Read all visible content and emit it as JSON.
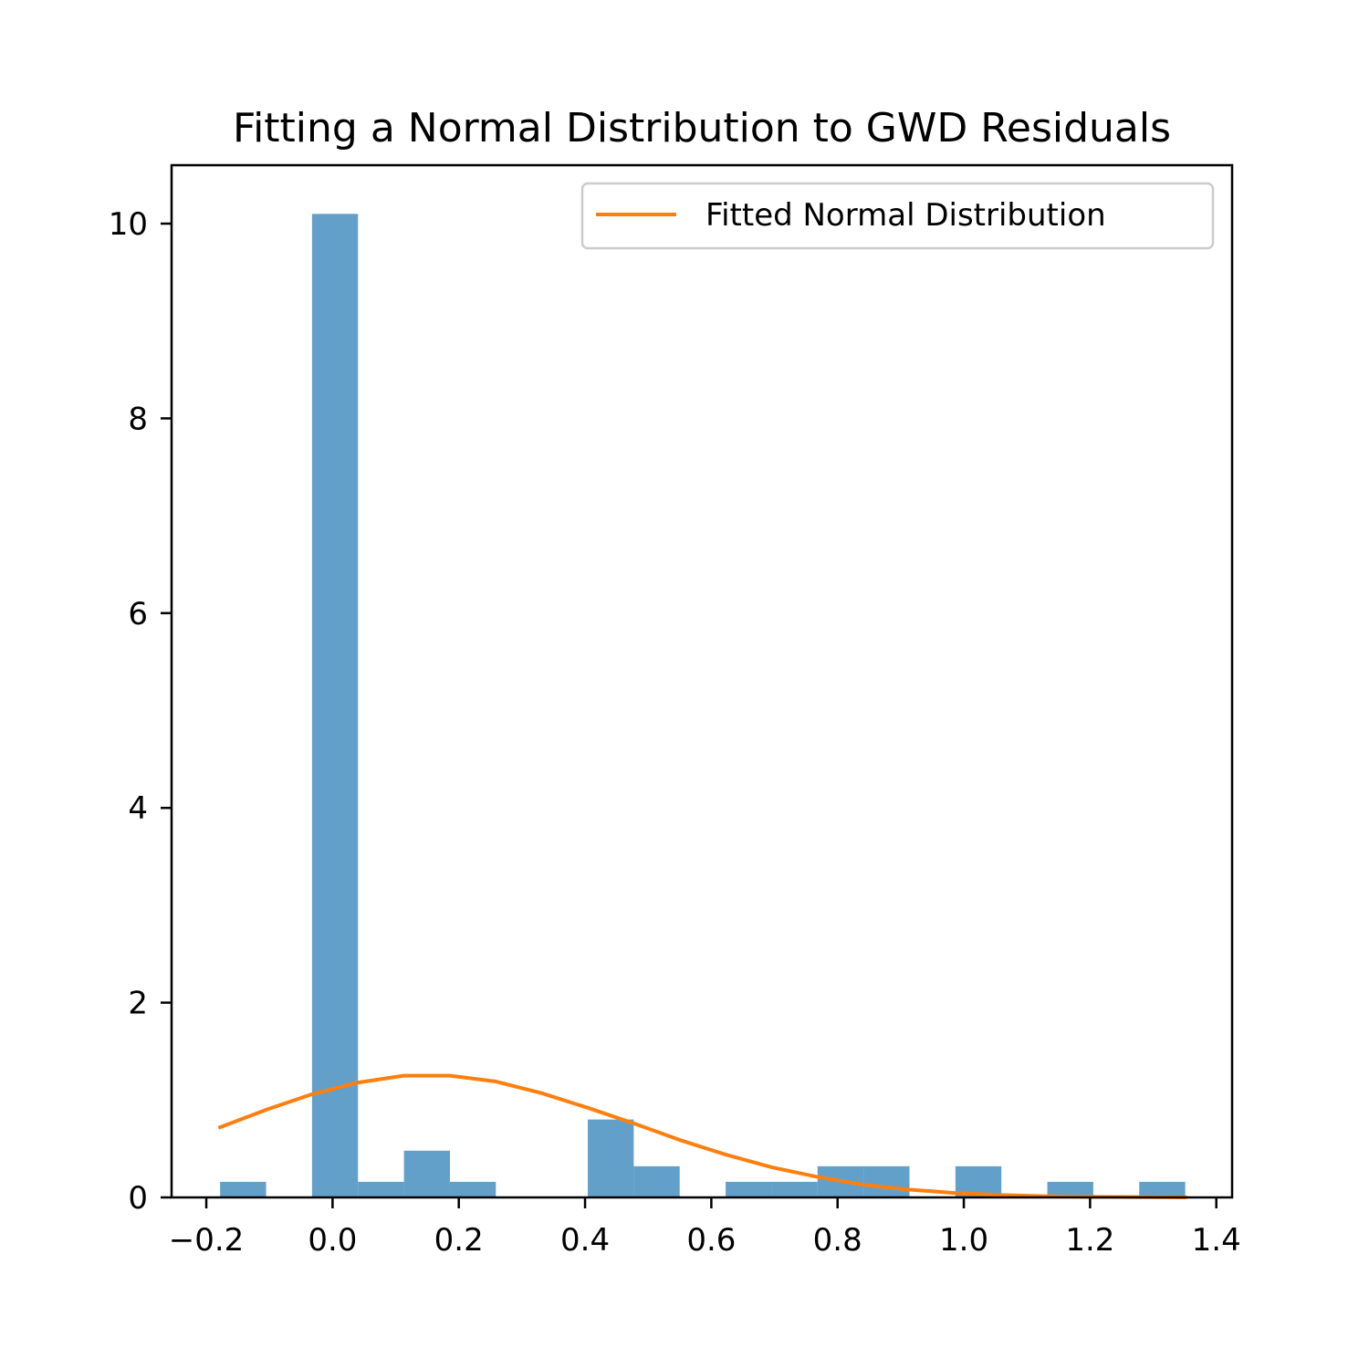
{
  "chart_data": {
    "type": "bar",
    "title": "Fitting a Normal Distribution to GWD Residuals",
    "xlabel": "",
    "ylabel": "",
    "xlim": [
      -0.255,
      1.425
    ],
    "ylim": [
      0,
      10.6
    ],
    "xticks": [
      {
        "value": -0.2,
        "label": "−0.2"
      },
      {
        "value": 0.0,
        "label": "0.0"
      },
      {
        "value": 0.2,
        "label": "0.2"
      },
      {
        "value": 0.4,
        "label": "0.4"
      },
      {
        "value": 0.6,
        "label": "0.6"
      },
      {
        "value": 0.8,
        "label": "0.8"
      },
      {
        "value": 1.0,
        "label": "1.0"
      },
      {
        "value": 1.2,
        "label": "1.2"
      },
      {
        "value": 1.4,
        "label": "1.4"
      }
    ],
    "yticks": [
      {
        "value": 0,
        "label": "0"
      },
      {
        "value": 2,
        "label": "2"
      },
      {
        "value": 4,
        "label": "4"
      },
      {
        "value": 6,
        "label": "6"
      },
      {
        "value": 8,
        "label": "8"
      },
      {
        "value": 10,
        "label": "10"
      }
    ],
    "grid": false,
    "legend": {
      "placement": "top-right",
      "entries": [
        "Fitted Normal Distribution"
      ]
    },
    "histogram": {
      "color": "#1f77b4",
      "opacity": 0.7,
      "bin_edges": [
        -0.1781,
        -0.1053,
        -0.0325,
        0.0403,
        0.1131,
        0.1859,
        0.2587,
        0.3315,
        0.4043,
        0.4771,
        0.5499,
        0.6227,
        0.6955,
        0.7683,
        0.8411,
        0.9139,
        0.9867,
        1.0595,
        1.1323,
        1.2051,
        1.2779,
        1.3507
      ],
      "heights": [
        0.16,
        0,
        10.1,
        0.16,
        0.48,
        0.16,
        0,
        0,
        0.8,
        0.32,
        0,
        0.16,
        0.16,
        0.32,
        0.32,
        0,
        0.32,
        0,
        0.16,
        0,
        0.16
      ]
    },
    "series": [
      {
        "name": "Fitted Normal Distribution",
        "type": "line",
        "color": "#ff7f0e",
        "x": [
          -0.1781,
          -0.1053,
          -0.0325,
          0.0403,
          0.1131,
          0.1859,
          0.2587,
          0.3315,
          0.4043,
          0.4771,
          0.5499,
          0.6227,
          0.6955,
          0.7683,
          0.8411,
          0.9139,
          0.9867,
          1.0595,
          1.1323,
          1.2051,
          1.2779,
          1.3507
        ],
        "y": [
          0.72,
          0.9,
          1.06,
          1.18,
          1.25,
          1.25,
          1.19,
          1.07,
          0.92,
          0.76,
          0.59,
          0.44,
          0.31,
          0.21,
          0.13,
          0.08,
          0.045,
          0.025,
          0.012,
          0.006,
          0.003,
          0.001
        ]
      }
    ]
  }
}
